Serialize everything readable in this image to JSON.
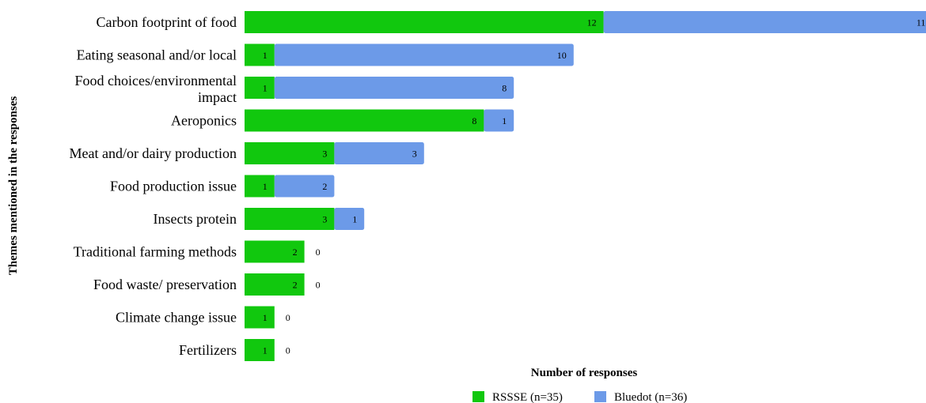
{
  "chart_data": {
    "type": "bar",
    "orientation": "horizontal",
    "stacked": true,
    "categories": [
      "Carbon footprint of food",
      "Eating seasonal and/or local",
      "Food choices/environmental impact",
      "Aeroponics",
      "Meat and/or dairy production",
      "Food production issue",
      "Insects protein",
      "Traditional farming methods",
      "Food waste/ preservation",
      "Climate change issue",
      "Fertilizers"
    ],
    "series": [
      {
        "name": "RSSSE (n=35)",
        "color": "#11c80e",
        "values": [
          12,
          1,
          1,
          8,
          3,
          1,
          3,
          2,
          2,
          1,
          1
        ]
      },
      {
        "name": "Bluedot (n=36)",
        "color": "#6c9ae8",
        "values": [
          11,
          10,
          8,
          1,
          3,
          2,
          1,
          0,
          0,
          0,
          0
        ]
      }
    ],
    "xlabel": "Number of responses",
    "ylabel": "Themes mentioned in the responses",
    "legend_position": "bottom-right",
    "grid": false
  }
}
